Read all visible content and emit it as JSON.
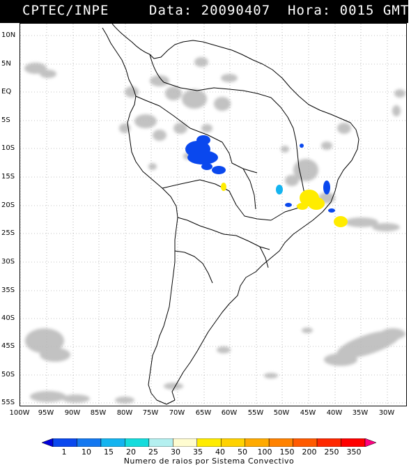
{
  "header": {
    "agency": "CPTEC/INPE",
    "datetime": "Data: 20090407  Hora: 0015 GMT"
  },
  "lat_labels": [
    "10N",
    "5N",
    "EQ",
    "5S",
    "10S",
    "15S",
    "20S",
    "25S",
    "30S",
    "35S",
    "40S",
    "45S",
    "50S",
    "55S"
  ],
  "lon_labels": [
    "100W",
    "95W",
    "90W",
    "85W",
    "80W",
    "75W",
    "70W",
    "65W",
    "60W",
    "55W",
    "50W",
    "45W",
    "40W",
    "35W",
    "30W"
  ],
  "colorbar": {
    "labels": [
      "1",
      "10",
      "15",
      "20",
      "25",
      "30",
      "35",
      "40",
      "50",
      "100",
      "150",
      "200",
      "250",
      "350"
    ],
    "colors": [
      "#0000dd",
      "#0a48ee",
      "#1478f0",
      "#14b4f0",
      "#14dcdc",
      "#b4f0f0",
      "#fffcd0",
      "#ffec00",
      "#ffd200",
      "#ffaa00",
      "#ff8200",
      "#ff5a00",
      "#ff2800",
      "#ff0000",
      "#ff0080"
    ],
    "title": "Numero de raios por Sistema Convectivo"
  }
}
